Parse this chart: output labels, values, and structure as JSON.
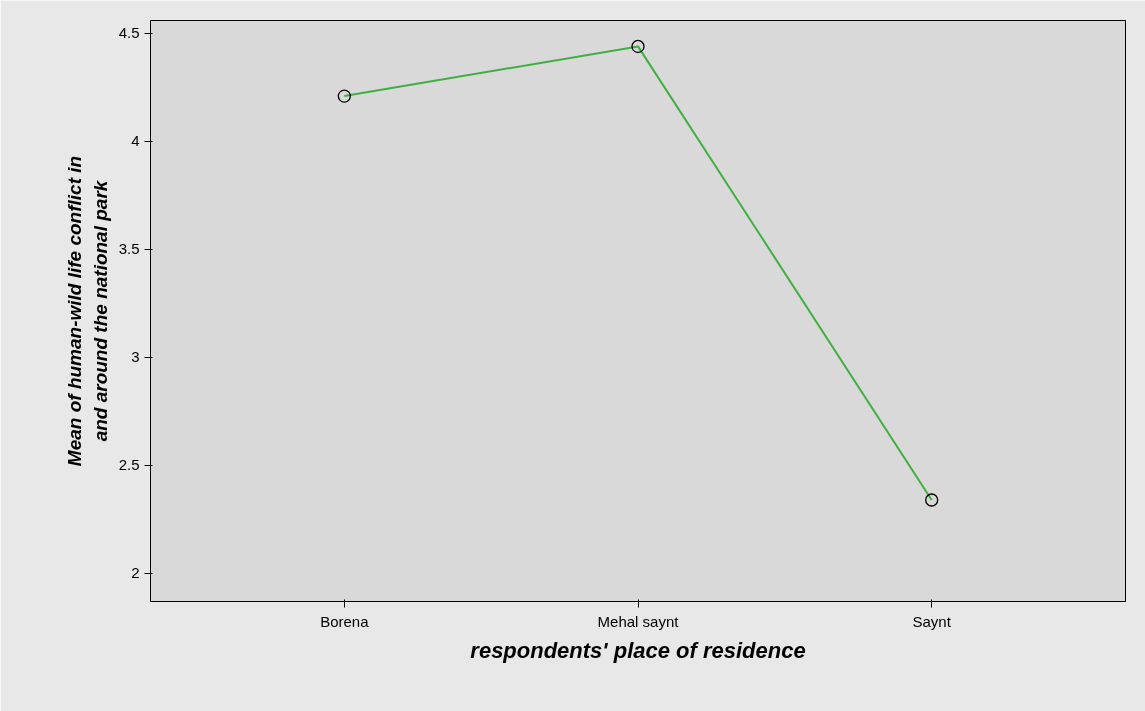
{
  "chart_data": {
    "type": "line",
    "xlabel": "respondents' place of residence",
    "ylabel": "Mean of human-wild life conflict in and around the national park",
    "categories": [
      "Borena",
      "Mehal saynt",
      "Saynt"
    ],
    "series": [
      {
        "color": "#3fb03f",
        "values": [
          4.21,
          4.44,
          2.34
        ]
      }
    ],
    "ylim": [
      1.87,
      4.56
    ],
    "yticks": [
      2,
      2.5,
      3,
      3.5,
      4,
      4.5
    ],
    "grid": false,
    "marker": "circle",
    "line_style": "solid"
  }
}
